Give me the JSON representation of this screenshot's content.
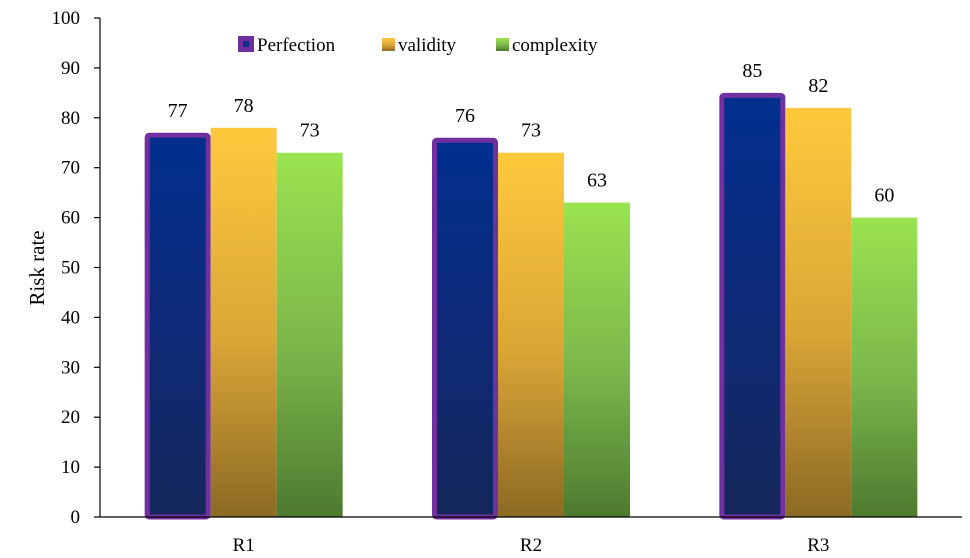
{
  "chart_data": {
    "type": "bar",
    "title": "",
    "xlabel": "",
    "ylabel": "Risk rate",
    "ylim": [
      0,
      100
    ],
    "yticks": [
      0,
      10,
      20,
      30,
      40,
      50,
      60,
      70,
      80,
      90,
      100
    ],
    "categories": [
      "R1",
      "R2",
      "R3"
    ],
    "series": [
      {
        "name": "Perfection",
        "values": [
          77,
          76,
          85
        ],
        "color": "#0d2d8a",
        "outline": "#7030a0"
      },
      {
        "name": "validity",
        "values": [
          78,
          73,
          82
        ],
        "color": "#f7c13a"
      },
      {
        "name": "complexity",
        "values": [
          73,
          63,
          60
        ],
        "color": "#8fd14f"
      }
    ],
    "grid": false,
    "legend": "top"
  }
}
